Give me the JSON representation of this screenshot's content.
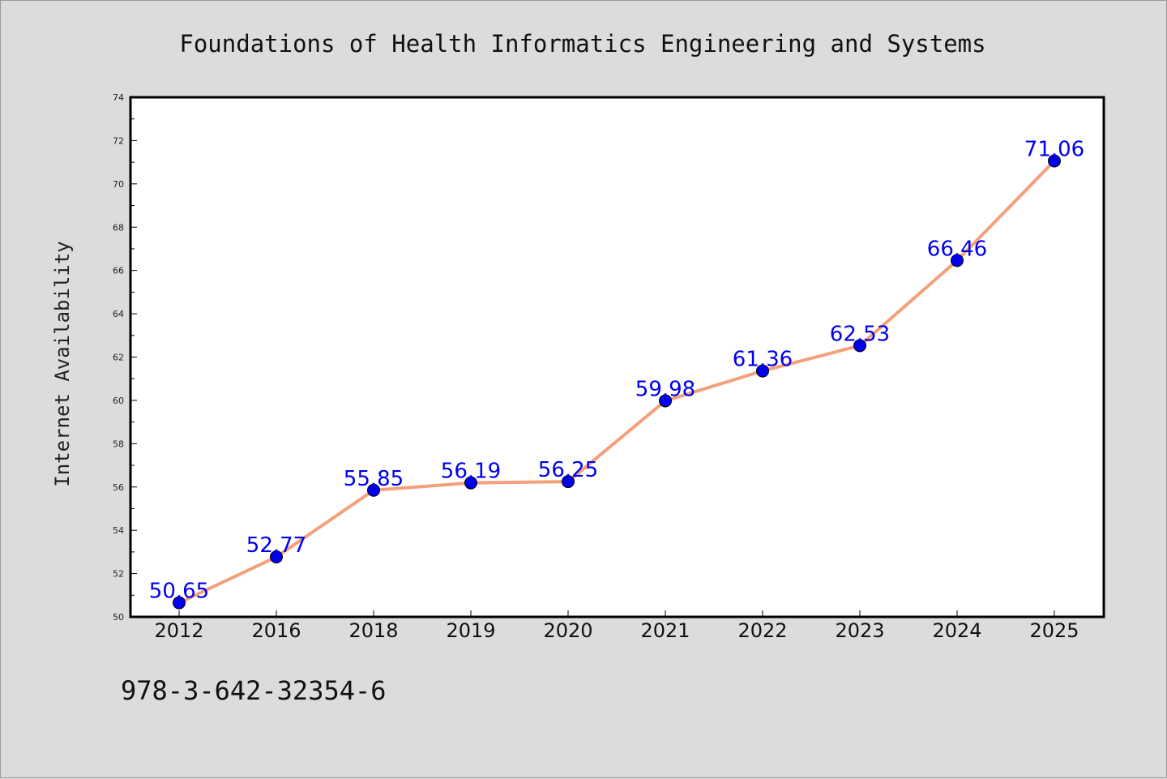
{
  "footer": {
    "isbn": "978-3-642-32354-6"
  },
  "colors": {
    "line": "#f4a07a",
    "marker": "#0000ee",
    "label": "#0000ee",
    "background": "#dcdcdc",
    "plot_bg": "#ffffff"
  },
  "chart_data": {
    "type": "line",
    "title": "Foundations of Health Informatics Engineering and Systems",
    "xlabel": "",
    "ylabel": "Internet Availability",
    "categories": [
      "2012",
      "2016",
      "2018",
      "2019",
      "2020",
      "2021",
      "2022",
      "2023",
      "2024",
      "2025"
    ],
    "series": [
      {
        "values": [
          50.65,
          52.77,
          55.85,
          56.19,
          56.25,
          59.98,
          61.36,
          62.53,
          66.46,
          71.06
        ]
      }
    ],
    "data_labels": [
      "50.65",
      "52.77",
      "55.85",
      "56.19",
      "56.25",
      "59.98",
      "61.36",
      "62.53",
      "66.46",
      "71.06"
    ],
    "ylim": [
      50,
      74
    ],
    "yticks": [
      50,
      52,
      54,
      56,
      58,
      60,
      62,
      64,
      66,
      68,
      70,
      72,
      74
    ],
    "grid": false,
    "legend": "none"
  }
}
